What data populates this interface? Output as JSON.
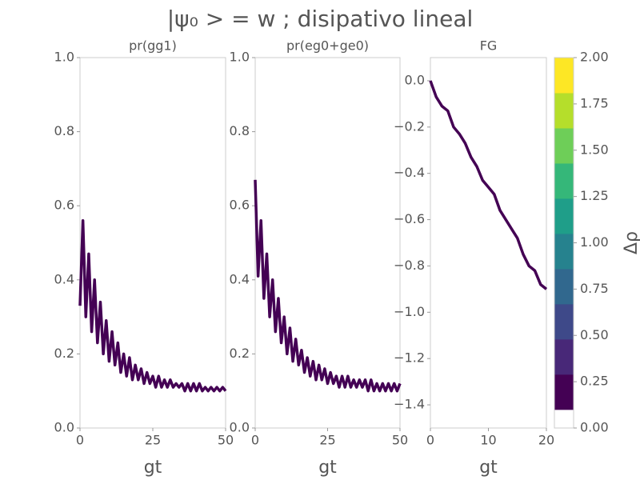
{
  "title": "|ψ₀ > = w ; disipativo lineal",
  "chart_data": [
    {
      "type": "line",
      "title": "pr(gg1)",
      "xlabel": "gt",
      "color": "#440154",
      "x": [
        0,
        1,
        2,
        3,
        4,
        5,
        6,
        7,
        8,
        9,
        10,
        11,
        12,
        13,
        14,
        15,
        16,
        17,
        18,
        19,
        20,
        21,
        22,
        23,
        24,
        25,
        26,
        27,
        28,
        29,
        30,
        31,
        32,
        33,
        34,
        35,
        36,
        37,
        38,
        39,
        40,
        41,
        42,
        43,
        44,
        45,
        46,
        47,
        48,
        49,
        50
      ],
      "values": [
        0.33,
        0.56,
        0.3,
        0.47,
        0.26,
        0.4,
        0.23,
        0.34,
        0.2,
        0.29,
        0.18,
        0.26,
        0.17,
        0.23,
        0.15,
        0.2,
        0.14,
        0.19,
        0.13,
        0.17,
        0.13,
        0.16,
        0.12,
        0.15,
        0.12,
        0.14,
        0.11,
        0.14,
        0.11,
        0.13,
        0.11,
        0.13,
        0.11,
        0.12,
        0.11,
        0.12,
        0.1,
        0.12,
        0.1,
        0.12,
        0.1,
        0.12,
        0.1,
        0.11,
        0.1,
        0.11,
        0.1,
        0.11,
        0.1,
        0.11,
        0.1
      ],
      "xlim": [
        0,
        50
      ],
      "xticks": [
        0,
        25,
        50
      ],
      "ylim": [
        0,
        1
      ],
      "yticks": [
        {
          "value": 0,
          "label": "0.0"
        },
        {
          "value": 0.2,
          "label": "0.2"
        },
        {
          "value": 0.4,
          "label": "0.4"
        },
        {
          "value": 0.6,
          "label": "0.6"
        },
        {
          "value": 0.8,
          "label": "0.8"
        },
        {
          "value": 1,
          "label": "1.0"
        }
      ]
    },
    {
      "type": "line",
      "title": "pr(eg0+ge0)",
      "xlabel": "gt",
      "color": "#440154",
      "x": [
        0,
        1,
        2,
        3,
        4,
        5,
        6,
        7,
        8,
        9,
        10,
        11,
        12,
        13,
        14,
        15,
        16,
        17,
        18,
        19,
        20,
        21,
        22,
        23,
        24,
        25,
        26,
        27,
        28,
        29,
        30,
        31,
        32,
        33,
        34,
        35,
        36,
        37,
        38,
        39,
        40,
        41,
        42,
        43,
        44,
        45,
        46,
        47,
        48,
        49,
        50
      ],
      "values": [
        0.67,
        0.41,
        0.56,
        0.35,
        0.47,
        0.3,
        0.4,
        0.26,
        0.35,
        0.23,
        0.3,
        0.2,
        0.27,
        0.18,
        0.24,
        0.17,
        0.21,
        0.15,
        0.19,
        0.14,
        0.18,
        0.13,
        0.17,
        0.13,
        0.16,
        0.12,
        0.15,
        0.12,
        0.14,
        0.11,
        0.14,
        0.11,
        0.14,
        0.11,
        0.13,
        0.11,
        0.13,
        0.11,
        0.13,
        0.1,
        0.13,
        0.1,
        0.12,
        0.1,
        0.12,
        0.1,
        0.12,
        0.1,
        0.12,
        0.1,
        0.12
      ],
      "xlim": [
        0,
        50
      ],
      "xticks": [
        0,
        25,
        50
      ],
      "ylim": [
        0,
        1
      ],
      "yticks": [
        {
          "value": 0,
          "label": "0.0"
        },
        {
          "value": 0.2,
          "label": "0.2"
        },
        {
          "value": 0.4,
          "label": "0.4"
        },
        {
          "value": 0.6,
          "label": "0.6"
        },
        {
          "value": 0.8,
          "label": "0.8"
        },
        {
          "value": 1,
          "label": "1.0"
        }
      ]
    },
    {
      "type": "line",
      "title": "FG",
      "xlabel": "gt",
      "color": "#440154",
      "x": [
        0,
        1,
        2,
        3,
        4,
        5,
        6,
        7,
        8,
        9,
        10,
        11,
        12,
        13,
        14,
        15,
        16,
        17,
        18,
        19,
        20
      ],
      "values": [
        0,
        -0.07,
        -0.11,
        -0.13,
        -0.2,
        -0.23,
        -0.27,
        -0.33,
        -0.37,
        -0.43,
        -0.46,
        -0.49,
        -0.56,
        -0.6,
        -0.64,
        -0.68,
        -0.75,
        -0.8,
        -0.82,
        -0.88,
        -0.9
      ],
      "xlim": [
        0,
        20
      ],
      "xticks": [
        0,
        10,
        20
      ],
      "ylim": [
        -1.5,
        0.1
      ],
      "yticks": [
        {
          "value": 0,
          "label": "0.0"
        },
        {
          "value": -0.2,
          "label": "−0.2"
        },
        {
          "value": -0.4,
          "label": "−0.4"
        },
        {
          "value": -0.6,
          "label": "−0.6"
        },
        {
          "value": -0.8,
          "label": "−0.8"
        },
        {
          "value": -1.0,
          "label": "−1.0"
        },
        {
          "value": -1.2,
          "label": "−1.2"
        },
        {
          "value": -1.4,
          "label": "−1.4"
        }
      ]
    },
    {
      "type": "colorbar",
      "ylabel": "Δρ",
      "ylim": [
        0,
        2
      ],
      "color_range": [
        0.1,
        2
      ],
      "colors": [
        "#440154",
        "#482878",
        "#3e4989",
        "#31688e",
        "#26828e",
        "#1f9e89",
        "#35b779",
        "#6ece58",
        "#b5de2b",
        "#fde725"
      ],
      "yticks": [
        {
          "value": 0,
          "label": "0.00"
        },
        {
          "value": 0.25,
          "label": "0.25"
        },
        {
          "value": 0.5,
          "label": "0.50"
        },
        {
          "value": 0.75,
          "label": "0.75"
        },
        {
          "value": 1,
          "label": "1.00"
        },
        {
          "value": 1.25,
          "label": "1.25"
        },
        {
          "value": 1.5,
          "label": "1.50"
        },
        {
          "value": 1.75,
          "label": "1.75"
        },
        {
          "value": 2,
          "label": "2.00"
        }
      ]
    }
  ]
}
